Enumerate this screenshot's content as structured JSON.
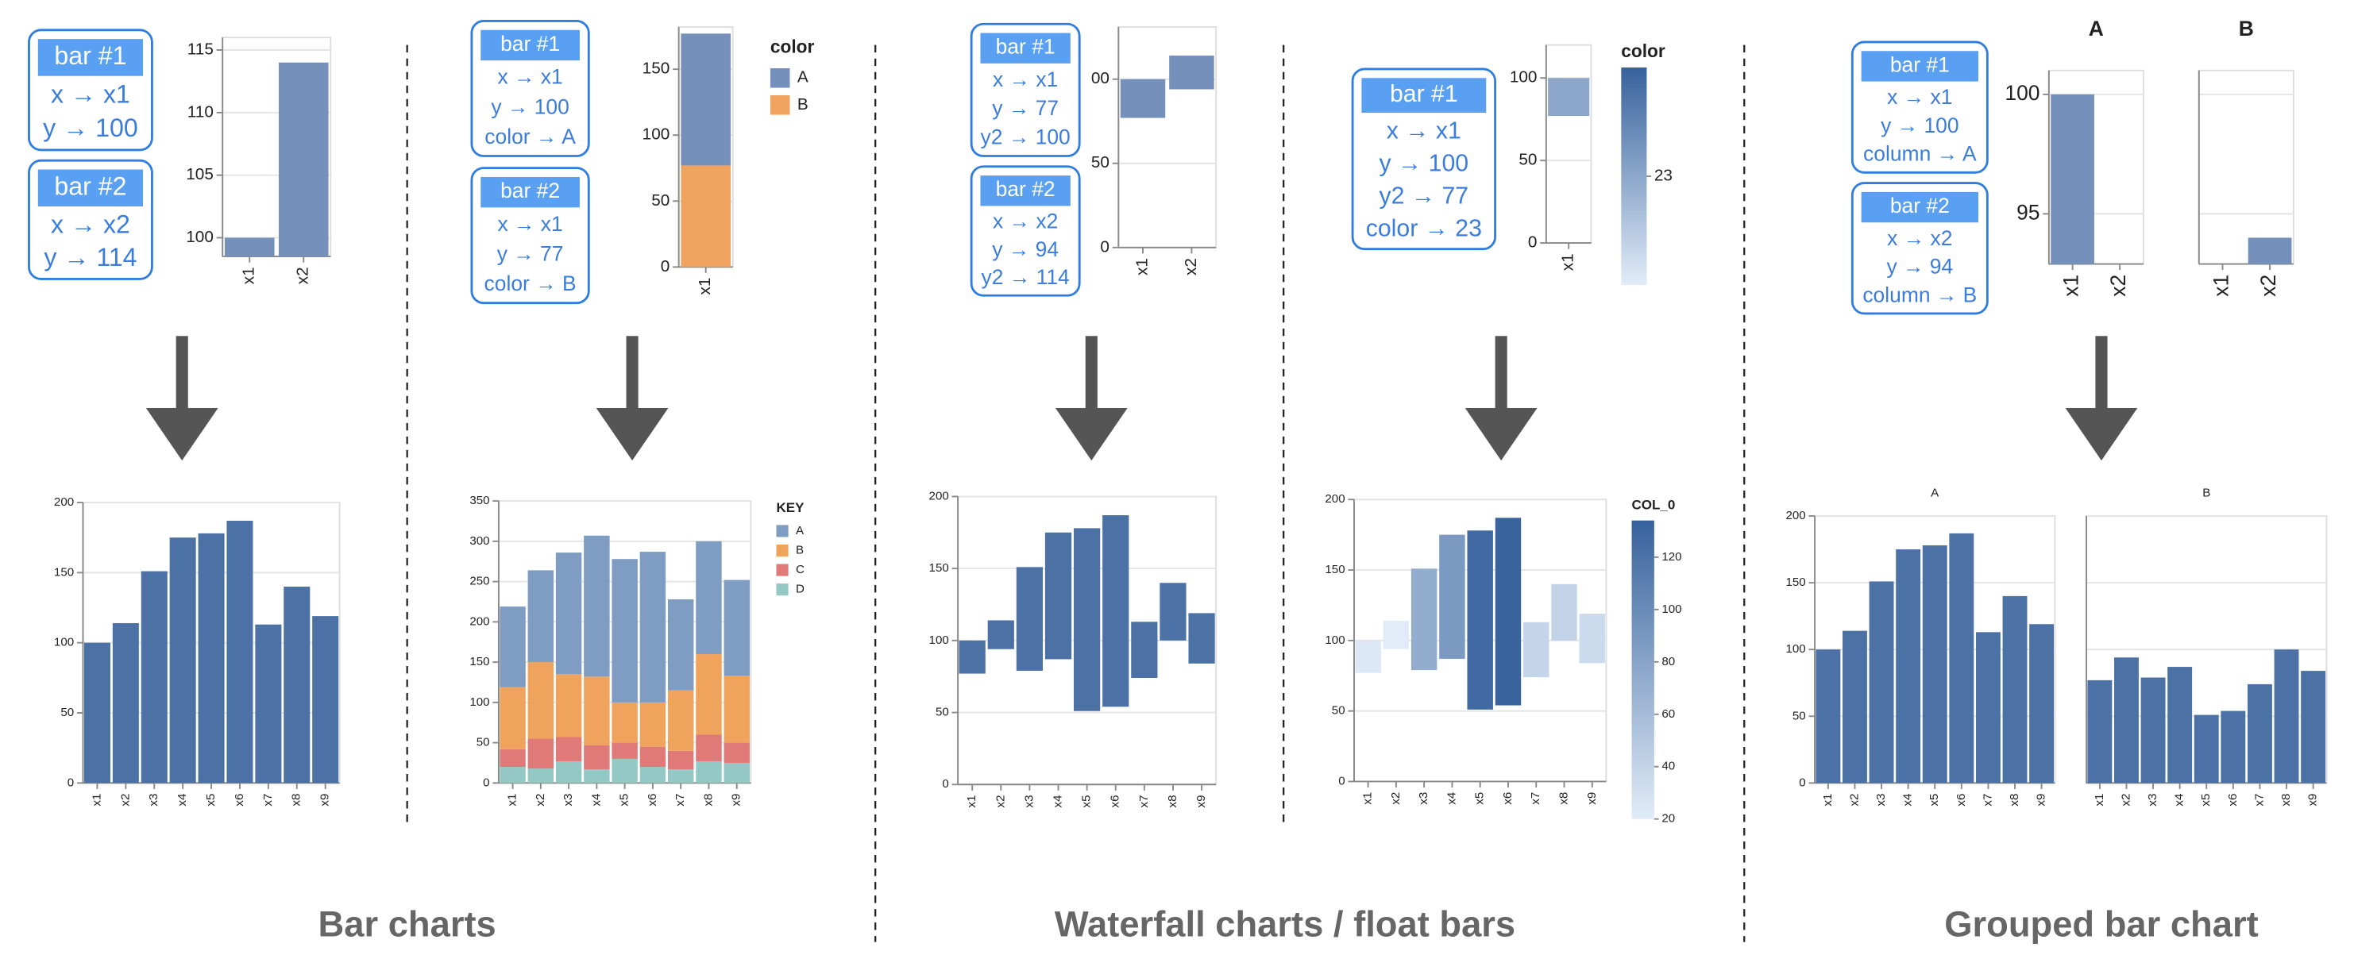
{
  "sections": [
    "Bar charts",
    "Waterfall charts / float bars",
    "Grouped bar chart"
  ],
  "cards": [
    {
      "title": "bar #1",
      "lines": [
        "x → x1",
        "y → 100"
      ]
    },
    {
      "title": "bar #2",
      "lines": [
        "x → x2",
        "y → 114"
      ]
    },
    {
      "title": "bar #1",
      "lines": [
        "x → x1",
        "y → 100",
        "color → A"
      ]
    },
    {
      "title": "bar #2",
      "lines": [
        "x → x1",
        "y → 77",
        "color → B"
      ]
    },
    {
      "title": "bar #1",
      "lines": [
        "x → x1",
        "y → 77",
        "y2 → 100"
      ]
    },
    {
      "title": "bar #2",
      "lines": [
        "x → x2",
        "y → 94",
        "y2 → 114"
      ]
    },
    {
      "title": "bar #1",
      "lines": [
        "x → x1",
        "y → 100",
        "y2 → 77",
        "color → 23"
      ]
    },
    {
      "title": "bar #1",
      "lines": [
        "x → x1",
        "y → 100",
        "column → A"
      ]
    },
    {
      "title": "bar #2",
      "lines": [
        "x → x2",
        "y → 94",
        "column → B"
      ]
    }
  ],
  "chart_data": [
    {
      "type": "bar",
      "categories": [
        "x1",
        "x2"
      ],
      "values": [
        100,
        114
      ],
      "color": "#7590bb",
      "ylim": [
        98.5,
        116
      ],
      "yticks": [
        100,
        105,
        110,
        115
      ],
      "grid": true
    },
    {
      "type": "stacked",
      "categories": [
        "x1"
      ],
      "series": [
        {
          "name": "A",
          "color": "#7590bb",
          "values": [
            100
          ]
        },
        {
          "name": "B",
          "color": "#f0a35e",
          "values": [
            77
          ]
        }
      ],
      "legend_title": "color",
      "ylim": [
        0,
        182
      ],
      "yticks": [
        0,
        50,
        100,
        150
      ],
      "grid": true
    },
    {
      "type": "floatbar",
      "categories": [
        "x1",
        "x2"
      ],
      "values": [
        100,
        114
      ],
      "values2": [
        77,
        94
      ],
      "color": "#7590bb",
      "ylim": [
        0,
        131
      ],
      "yticks": [
        0,
        50,
        {
          "value": 100,
          "label": "00"
        }
      ],
      "grid": true
    },
    {
      "type": "floatbar",
      "categories": [
        "x1"
      ],
      "values": [
        100
      ],
      "values2": [
        77
      ],
      "color_values": [
        23
      ],
      "clim": [
        22,
        24
      ],
      "legend_title": "color",
      "legend_ticks": [
        23
      ],
      "ylim": [
        0,
        120
      ],
      "yticks": [
        0,
        50,
        100
      ],
      "grid": true
    },
    {
      "type": "grouped",
      "categories": [
        "x1",
        "x2"
      ],
      "series": [
        {
          "name": "A",
          "color": "#7590bb",
          "values": [
            100,
            null
          ]
        },
        {
          "name": "B",
          "color": "#7590bb",
          "values": [
            null,
            94
          ]
        }
      ],
      "ylim": [
        92.9,
        101
      ],
      "yticks": [
        95,
        100
      ],
      "grid": true
    },
    {
      "type": "bar",
      "categories": [
        "x1",
        "x2",
        "x3",
        "x4",
        "x5",
        "x6",
        "x7",
        "x8",
        "x9"
      ],
      "values": [
        100,
        114,
        151,
        175,
        178,
        187,
        113,
        140,
        119
      ],
      "color": "#4c72a5",
      "ylim": [
        0,
        200
      ],
      "yticks": [
        0,
        50,
        100,
        150,
        200
      ],
      "grid": true
    },
    {
      "type": "stacked",
      "categories": [
        "x1",
        "x2",
        "x3",
        "x4",
        "x5",
        "x6",
        "x7",
        "x8",
        "x9"
      ],
      "series": [
        {
          "name": "A",
          "color": "#7f9cc3",
          "values": [
            100,
            114,
            151,
            175,
            178,
            187,
            113,
            140,
            119
          ]
        },
        {
          "name": "B",
          "color": "#f0a35c",
          "values": [
            77,
            95,
            78,
            85,
            50,
            55,
            75,
            100,
            83
          ]
        },
        {
          "name": "C",
          "color": "#e07a78",
          "values": [
            22,
            37,
            30,
            30,
            20,
            25,
            23,
            33,
            25
          ]
        },
        {
          "name": "D",
          "color": "#94c8c4",
          "values": [
            20,
            18,
            27,
            17,
            30,
            20,
            17,
            27,
            25
          ]
        }
      ],
      "legend_title": "KEY",
      "ylim": [
        0,
        350
      ],
      "yticks": [
        0,
        50,
        100,
        150,
        200,
        250,
        300,
        350
      ],
      "grid": true
    },
    {
      "type": "floatbar",
      "categories": [
        "x1",
        "x2",
        "x3",
        "x4",
        "x5",
        "x6",
        "x7",
        "x8",
        "x9"
      ],
      "values": [
        100,
        114,
        151,
        175,
        178,
        187,
        113,
        140,
        119
      ],
      "values2": [
        77,
        94,
        79,
        87,
        51,
        54,
        74,
        100,
        84
      ],
      "color": "#4c72a5",
      "ylim": [
        0,
        200
      ],
      "yticks": [
        0,
        50,
        100,
        150,
        200
      ],
      "grid": true
    },
    {
      "type": "floatbar",
      "categories": [
        "x1",
        "x2",
        "x3",
        "x4",
        "x5",
        "x6",
        "x7",
        "x8",
        "x9"
      ],
      "values": [
        100,
        114,
        151,
        175,
        178,
        187,
        113,
        140,
        119
      ],
      "values2": [
        77,
        94,
        79,
        87,
        51,
        54,
        74,
        100,
        84
      ],
      "color_values": [
        23,
        20,
        72,
        88,
        127,
        133,
        39,
        40,
        35
      ],
      "clim": [
        20,
        134
      ],
      "legend_title": "COL_0",
      "legend_ticks": [
        20,
        40,
        60,
        80,
        100,
        120
      ],
      "ylim": [
        0,
        200
      ],
      "yticks": [
        0,
        50,
        100,
        150,
        200
      ],
      "grid": true
    },
    {
      "type": "grouped",
      "categories": [
        "x1",
        "x2",
        "x3",
        "x4",
        "x5",
        "x6",
        "x7",
        "x8",
        "x9"
      ],
      "series": [
        {
          "name": "A",
          "color": "#4c72a5",
          "values": [
            100,
            114,
            151,
            175,
            178,
            187,
            113,
            140,
            119
          ]
        },
        {
          "name": "B",
          "color": "#4c72a5",
          "values": [
            77,
            94,
            79,
            87,
            51,
            54,
            74,
            100,
            84
          ]
        }
      ],
      "ylim": [
        0,
        200
      ],
      "yticks": [
        0,
        50,
        100,
        150,
        200
      ],
      "grid": true
    }
  ]
}
